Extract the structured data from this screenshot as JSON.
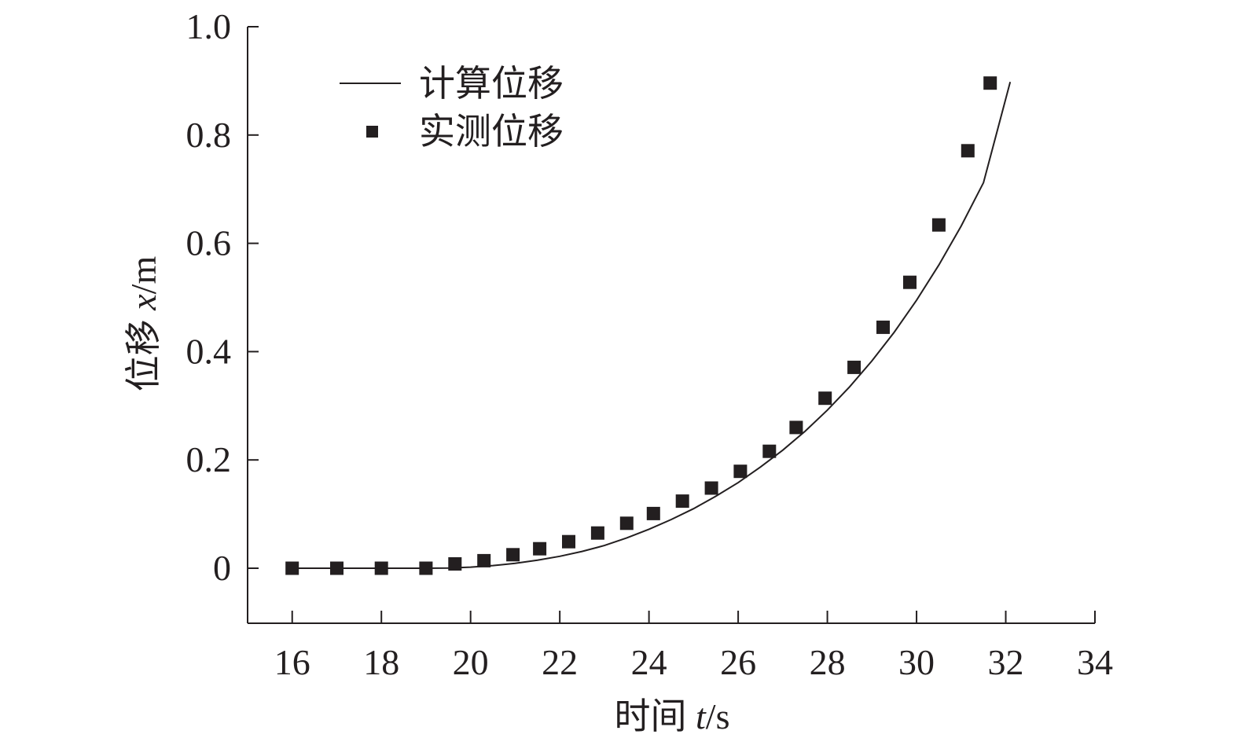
{
  "chart_data": {
    "type": "scatter",
    "xlabel_prefix": "时间 ",
    "xlabel_var": "t",
    "xlabel_unit": "/s",
    "ylabel_prefix": "位移 ",
    "ylabel_var": "x",
    "ylabel_unit": "/m",
    "xlim": [
      15,
      34
    ],
    "ylim": [
      -0.1,
      1.0
    ],
    "x_ticks": [
      16,
      18,
      20,
      22,
      24,
      26,
      28,
      30,
      32,
      34
    ],
    "x_tick_labels": [
      "16",
      "18",
      "20",
      "22",
      "24",
      "26",
      "28",
      "30",
      "32",
      "34"
    ],
    "y_ticks": [
      0,
      0.2,
      0.4,
      0.6,
      0.8,
      1.0
    ],
    "y_tick_labels": [
      "0",
      "0.2",
      "0.4",
      "0.6",
      "0.8",
      "1.0"
    ],
    "grid": false,
    "legend_position": "top-left",
    "series": [
      {
        "name": "计算位移",
        "kind": "line",
        "x": [
          16,
          17,
          18,
          19,
          19.5,
          20,
          20.5,
          21,
          21.5,
          22,
          22.5,
          23,
          23.5,
          24,
          24.5,
          25,
          25.5,
          26,
          26.5,
          27,
          27.5,
          28,
          28.5,
          29,
          29.5,
          30,
          30.5,
          31,
          31.5,
          32.1
        ],
        "y": [
          0,
          0,
          0,
          0,
          0.0005,
          0.002,
          0.005,
          0.009,
          0.015,
          0.022,
          0.031,
          0.042,
          0.056,
          0.072,
          0.09,
          0.11,
          0.133,
          0.158,
          0.187,
          0.218,
          0.253,
          0.292,
          0.335,
          0.383,
          0.436,
          0.495,
          0.56,
          0.632,
          0.712,
          0.898
        ]
      },
      {
        "name": "实测位移",
        "kind": "scatter",
        "x": [
          16,
          17,
          18,
          19,
          19.65,
          20.3,
          20.95,
          21.55,
          22.2,
          22.85,
          23.5,
          24.1,
          24.75,
          25.4,
          26.05,
          26.7,
          27.3,
          27.95,
          28.6,
          29.25,
          29.85,
          30.5,
          31.15,
          31.65
        ],
        "y": [
          0,
          0,
          0,
          0,
          0.008,
          0.014,
          0.025,
          0.036,
          0.049,
          0.065,
          0.083,
          0.101,
          0.124,
          0.148,
          0.179,
          0.216,
          0.26,
          0.314,
          0.371,
          0.445,
          0.528,
          0.634,
          0.771,
          0.896
        ]
      }
    ]
  },
  "legend": {
    "items": [
      {
        "label": "计算位移",
        "symbol": "line"
      },
      {
        "label": "实测位移",
        "symbol": "square"
      }
    ]
  },
  "colors": {
    "ink": "#231f20",
    "background": "#ffffff"
  }
}
